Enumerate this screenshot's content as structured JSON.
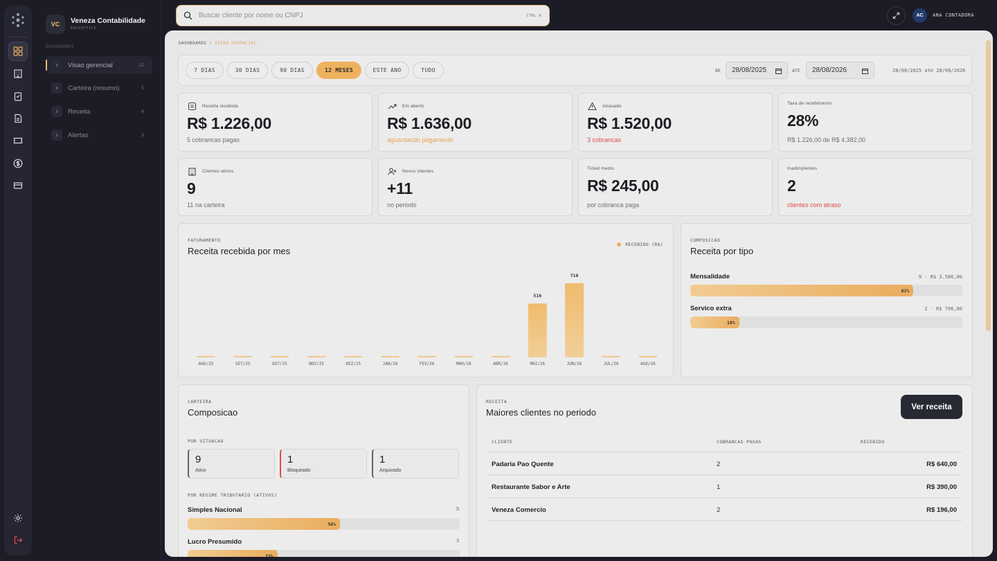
{
  "brand": {
    "initials": "VC",
    "name": "Veneza Contabilidade",
    "subtitle": "BACKOFFICE"
  },
  "sidebar": {
    "section_label": "DASHBOARDS",
    "items": [
      {
        "label": "Visao gerencial",
        "count": "12"
      },
      {
        "label": "Carteira (resumo)",
        "count": "5"
      },
      {
        "label": "Receita",
        "count": "4"
      },
      {
        "label": "Alertas",
        "count": "3"
      }
    ]
  },
  "search": {
    "placeholder": "Buscar cliente por nome ou CNPJ",
    "shortcut": "CTRL K"
  },
  "user": {
    "initials": "AC",
    "name": "ANA CONTADORA"
  },
  "breadcrumb": {
    "root": "DASHBOARDS",
    "separator": "/",
    "current": "VISAO GERENCIAL"
  },
  "filters": {
    "periods": [
      "7 DIAS",
      "30 DIAS",
      "90 DIAS",
      "12 MESES",
      "ESTE ANO",
      "TUDO"
    ],
    "active_period": "12 MESES",
    "from_label": "DE",
    "from_value": "28/08/2025",
    "to_label": "ATE",
    "to_value": "28/08/2026",
    "range_text": "28/08/2025 ate 28/08/2026"
  },
  "kpis": [
    {
      "label": "Receita recebida",
      "value": "R$ 1.226,00",
      "sub": "5 cobrancas pagas",
      "icon": "receipt-icon"
    },
    {
      "label": "Em aberto",
      "value": "R$ 1.636,00",
      "sub": "aguardando pagamento",
      "icon": "trend-up-icon"
    },
    {
      "label": "Atrasado",
      "value": "R$ 1.520,00",
      "sub": "3 cobrancas",
      "icon": "warning-icon"
    },
    {
      "label": "Taxa de recebimento",
      "value": "28%",
      "sub": "R$ 1.226,00 de R$ 4.382,00"
    },
    {
      "label": "Clientes ativos",
      "value": "9",
      "sub": "11 na carteira",
      "icon": "building-icon"
    },
    {
      "label": "Novos clientes",
      "value": "+11",
      "sub": "no periodo",
      "icon": "user-plus-icon"
    },
    {
      "label": "Ticket medio",
      "value": "R$ 245,00",
      "sub": "por cobranca paga"
    },
    {
      "label": "Inadimplentes",
      "value": "2",
      "sub": "clientes com atraso"
    }
  ],
  "revenue_chart": {
    "kicker": "FATURAMENTO",
    "title": "Receita recebida por mes",
    "legend": "RECEBIDO (R$)",
    "accent": "#eab262"
  },
  "chart_data": {
    "type": "bar",
    "categories": [
      "AGO/25",
      "SET/25",
      "OUT/25",
      "NOV/25",
      "DEZ/25",
      "JAN/26",
      "FEV/26",
      "MAR/26",
      "ABR/26",
      "MAI/26",
      "JUN/26",
      "JUL/26",
      "AGO/26"
    ],
    "series": [
      {
        "name": "RECEBIDO (R$)",
        "values": [
          0,
          0,
          0,
          0,
          0,
          0,
          0,
          0,
          0,
          516,
          710,
          0,
          0
        ]
      }
    ],
    "data_labels": [
      "",
      "",
      "",
      "",
      "",
      "",
      "",
      "",
      "",
      "516",
      "710",
      "",
      ""
    ],
    "ylim": [
      0,
      710
    ],
    "grid": false,
    "legend": "top-right"
  },
  "composition_type": {
    "kicker": "COMPOSICAO",
    "title": "Receita por tipo",
    "rows": [
      {
        "name": "Mensalidade",
        "meta": "9 · R$ 3.586,00",
        "pct": "82%",
        "fraction": 0.82
      },
      {
        "name": "Servico extra",
        "meta": "2 · R$ 796,00",
        "pct": "18%",
        "fraction": 0.18
      }
    ]
  },
  "portfolio": {
    "kicker": "CARTEIRA",
    "title": "Composicao",
    "status_label": "POR SITUACAO",
    "status": [
      {
        "n": "9",
        "label": "Ativo",
        "color": "#5e6270"
      },
      {
        "n": "1",
        "label": "Bloqueado",
        "color": "#e0474a"
      },
      {
        "n": "1",
        "label": "Arquivado",
        "color": "#5e6270"
      }
    ],
    "regime_label": "POR REGIME TRIBUTARIO (ATIVOS)",
    "regimes": [
      {
        "name": "Simples Nacional",
        "count": "5",
        "pct": "56%",
        "fraction": 0.56
      },
      {
        "name": "Lucro Presumido",
        "count": "3",
        "pct": "33%",
        "fraction": 0.33
      }
    ]
  },
  "top_clients": {
    "kicker": "RECEITA",
    "title": "Maiores clientes no periodo",
    "button": "Ver receita",
    "columns": [
      "CLIENTE",
      "COBRANCAS PAGAS",
      "RECEBIDO"
    ],
    "rows": [
      {
        "client": "Padaria Pao Quente",
        "paid": "2",
        "received": "R$ 640,00"
      },
      {
        "client": "Restaurante Sabor e Arte",
        "paid": "1",
        "received": "R$ 390,00"
      },
      {
        "client": "Veneza Comercio",
        "paid": "2",
        "received": "R$ 196,00"
      }
    ]
  }
}
